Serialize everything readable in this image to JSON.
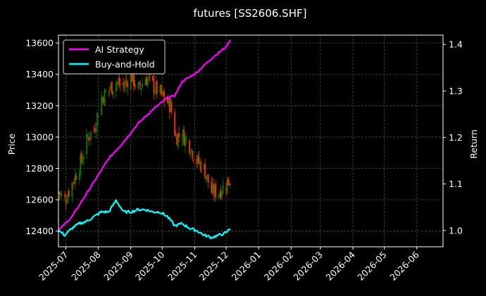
{
  "chart_data": {
    "type": "line",
    "title": "futures [SS2606.SHF]",
    "ylabel_left": "Price",
    "ylabel_right": "Return",
    "xlim": [
      "2025-06-24",
      "2026-06-26"
    ],
    "ylim_left": [
      12300,
      13650
    ],
    "ylim_right": [
      0.965,
      1.42
    ],
    "x_ticks": [
      "2025-07-01",
      "2025-08-01",
      "2025-09-01",
      "2025-10-01",
      "2025-11-01",
      "2025-12-01",
      "2026-01-01",
      "2026-02-01",
      "2026-03-01",
      "2026-04-01",
      "2026-05-01",
      "2026-06-01"
    ],
    "x_tick_labels": [
      "2025-07",
      "2025-08",
      "2025-09",
      "2025-10",
      "2025-11",
      "2025-12",
      "2026-01",
      "2026-02",
      "2026-03",
      "2026-04",
      "2026-05",
      "2026-06"
    ],
    "y_ticks_left": [
      12400,
      12600,
      12800,
      13000,
      13200,
      13400,
      13600
    ],
    "y_ticks_right": [
      1.0,
      1.1,
      1.2,
      1.3,
      1.4
    ],
    "grid": true,
    "legend_placement": "top-left",
    "colors": {
      "background": "#000000",
      "up_candle": "#008000",
      "down_candle": "#ff2a00",
      "ai_strategy": "#ff00ff",
      "buy_and_hold": "#00ffff",
      "grid": "#4a4a4a",
      "text": "#ffffff"
    },
    "price_anchors": {
      "x": [
        "2025-06-24",
        "2025-06-30",
        "2025-07-08",
        "2025-07-16",
        "2025-07-22",
        "2025-07-28",
        "2025-08-04",
        "2025-08-11",
        "2025-08-18",
        "2025-08-25",
        "2025-09-01",
        "2025-09-08",
        "2025-09-15",
        "2025-09-22",
        "2025-10-09",
        "2025-10-14",
        "2025-10-20",
        "2025-10-27",
        "2025-11-03",
        "2025-11-10",
        "2025-11-17",
        "2025-11-24",
        "2025-12-01",
        "2025-12-05"
      ],
      "y": [
        12650,
        12600,
        12720,
        12850,
        13000,
        13050,
        13250,
        13300,
        13350,
        13320,
        13400,
        13300,
        13380,
        13330,
        13200,
        13000,
        13020,
        12950,
        12850,
        12800,
        12650,
        12650,
        12700,
        12730
      ]
    },
    "series": [
      {
        "name": "AI Strategy",
        "axis": "right",
        "x": [
          "2025-06-24",
          "2025-07-07",
          "2025-07-21",
          "2025-08-04",
          "2025-08-11",
          "2025-08-25",
          "2025-09-08",
          "2025-09-22",
          "2025-10-06",
          "2025-10-13",
          "2025-10-20",
          "2025-11-03",
          "2025-11-17",
          "2025-12-01",
          "2025-12-05"
        ],
        "y": [
          1.0,
          1.03,
          1.08,
          1.13,
          1.155,
          1.19,
          1.23,
          1.26,
          1.285,
          1.29,
          1.32,
          1.34,
          1.37,
          1.395,
          1.41
        ]
      },
      {
        "name": "Buy-and-Hold",
        "axis": "right",
        "x": [
          "2025-06-24",
          "2025-06-30",
          "2025-07-07",
          "2025-07-14",
          "2025-07-21",
          "2025-07-28",
          "2025-08-04",
          "2025-08-11",
          "2025-08-18",
          "2025-08-25",
          "2025-09-01",
          "2025-09-08",
          "2025-09-15",
          "2025-09-22",
          "2025-09-29",
          "2025-10-06",
          "2025-10-13",
          "2025-10-20",
          "2025-10-27",
          "2025-11-03",
          "2025-11-10",
          "2025-11-17",
          "2025-11-24",
          "2025-12-01",
          "2025-12-05"
        ],
        "y": [
          1.0,
          0.99,
          1.005,
          1.015,
          1.02,
          1.03,
          1.04,
          1.04,
          1.065,
          1.04,
          1.04,
          1.045,
          1.045,
          1.04,
          1.04,
          1.03,
          1.01,
          1.015,
          1.005,
          1.0,
          0.99,
          0.985,
          0.99,
          0.995,
          1.005
        ]
      }
    ]
  }
}
